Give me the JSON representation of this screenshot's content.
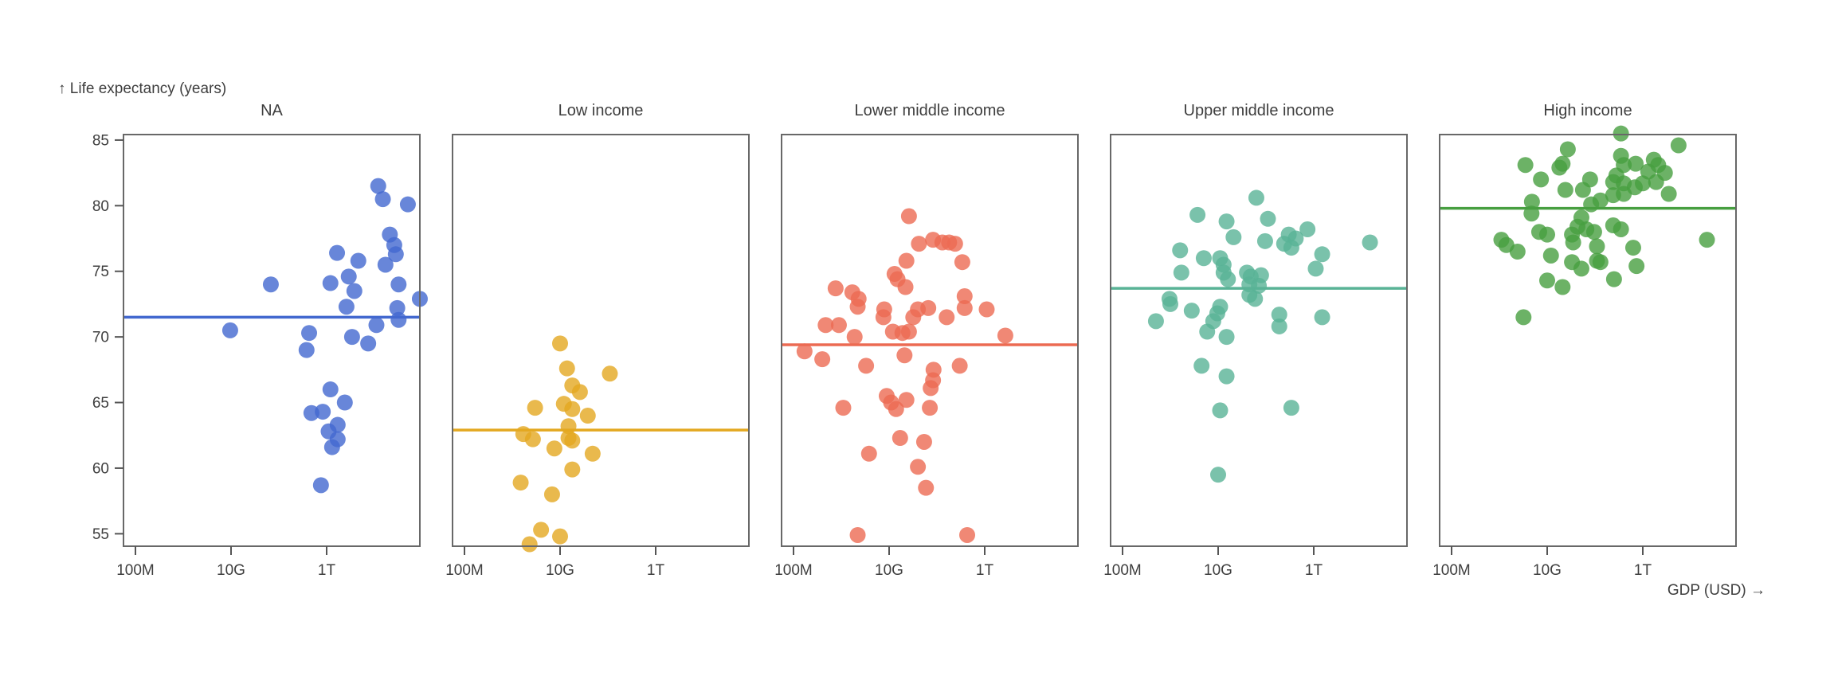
{
  "page": {
    "background": "#ffffff"
  },
  "style": {
    "frame_color": "#686868",
    "tick_color": "#555555",
    "text_color": "#3e3e3e",
    "dot_opacity": 0.8,
    "facet_colors": [
      "#4268cf",
      "#e3a820",
      "#ec6a52",
      "#59b396",
      "#479f40"
    ]
  },
  "chart_data": {
    "type": "scatter",
    "title": "",
    "ylabel_caption": "↑ Life expectancy (years)",
    "xlabel_caption": "GDP (USD) →",
    "xlabel": "GDP (USD)",
    "ylabel": "Life expectancy (years)",
    "x_scale": "log",
    "grid": false,
    "legend_position": "none",
    "y_ticks": [
      85,
      80,
      75,
      70,
      65,
      60,
      55
    ],
    "y_domain": [
      54.1,
      85.4
    ],
    "x_domain": [
      56000000.0,
      89000000000000.0
    ],
    "x_ticks": [
      {
        "value": 100000000.0,
        "label": "100M"
      },
      {
        "value": 10000000000.0,
        "label": "10G"
      },
      {
        "value": 1000000000000.0,
        "label": "1T"
      }
    ],
    "facets": [
      {
        "title": "NA",
        "color": "#4268cf",
        "mean": 71.5,
        "points": [
          [
            68000000000.0,
            74.0
          ],
          [
            1200000000000.0,
            74.1
          ],
          [
            1650000000000.0,
            76.4
          ],
          [
            4600000000000.0,
            75.8
          ],
          [
            2900000000000.0,
            74.6
          ],
          [
            3800000000000.0,
            73.5
          ],
          [
            2600000000000.0,
            72.3
          ],
          [
            12000000000000.0,
            81.5
          ],
          [
            15000000000000.0,
            80.5
          ],
          [
            50000000000000.0,
            80.1
          ],
          [
            21000000000000.0,
            77.8
          ],
          [
            26000000000000.0,
            77.0
          ],
          [
            28000000000000.0,
            76.3
          ],
          [
            17000000000000.0,
            75.5
          ],
          [
            32000000000000.0,
            74.0
          ],
          [
            89000000000000.0,
            72.9
          ],
          [
            30000000000000.0,
            72.2
          ],
          [
            32000000000000.0,
            71.3
          ],
          [
            11000000000000.0,
            70.9
          ],
          [
            9600000000.0,
            70.5
          ],
          [
            430000000000.0,
            70.3
          ],
          [
            3400000000000.0,
            70.0
          ],
          [
            7400000000000.0,
            69.5
          ],
          [
            380000000000.0,
            69.0
          ],
          [
            1200000000000.0,
            66.0
          ],
          [
            2400000000000.0,
            65.0
          ],
          [
            480000000000.0,
            64.2
          ],
          [
            830000000000.0,
            64.3
          ],
          [
            1700000000000.0,
            63.3
          ],
          [
            1100000000000.0,
            62.8
          ],
          [
            1700000000000.0,
            62.2
          ],
          [
            1300000000000.0,
            61.6
          ],
          [
            760000000000.0,
            58.7
          ]
        ]
      },
      {
        "title": "Low income",
        "color": "#e3a820",
        "mean": 62.9,
        "points": [
          [
            10000000000.0,
            69.5
          ],
          [
            14000000000.0,
            67.6
          ],
          [
            110000000000.0,
            67.2
          ],
          [
            18000000000.0,
            66.3
          ],
          [
            26000000000.0,
            65.8
          ],
          [
            3000000000.0,
            64.6
          ],
          [
            12000000000.0,
            64.9
          ],
          [
            18000000000.0,
            64.5
          ],
          [
            38000000000.0,
            64.0
          ],
          [
            15000000000.0,
            63.2
          ],
          [
            1700000000.0,
            62.6
          ],
          [
            2700000000.0,
            62.2
          ],
          [
            7600000000.0,
            61.5
          ],
          [
            15000000000.0,
            62.3
          ],
          [
            18000000000.0,
            62.1
          ],
          [
            48000000000.0,
            61.1
          ],
          [
            18000000000.0,
            59.9
          ],
          [
            1500000000.0,
            58.9
          ],
          [
            6800000000.0,
            58.0
          ],
          [
            4000000000.0,
            55.3
          ],
          [
            10000000000.0,
            54.8
          ],
          [
            2300000000.0,
            54.2
          ]
        ]
      },
      {
        "title": "Lower middle income",
        "color": "#ec6a52",
        "mean": 69.4,
        "points": [
          [
            26000000000.0,
            79.2
          ],
          [
            42000000000.0,
            77.1
          ],
          [
            83000000000.0,
            77.4
          ],
          [
            130000000000.0,
            77.2
          ],
          [
            180000000000.0,
            77.2
          ],
          [
            240000000000.0,
            77.1
          ],
          [
            340000000000.0,
            75.7
          ],
          [
            23000000000.0,
            75.8
          ],
          [
            13000000000.0,
            74.8
          ],
          [
            15000000000.0,
            74.4
          ],
          [
            22000000000.0,
            73.8
          ],
          [
            760000000.0,
            73.7
          ],
          [
            1700000000.0,
            73.4
          ],
          [
            2300000000.0,
            72.9
          ],
          [
            2200000000.0,
            72.3
          ],
          [
            7900000000.0,
            72.1
          ],
          [
            7600000000.0,
            71.5
          ],
          [
            40000000000.0,
            72.1
          ],
          [
            66000000000.0,
            72.2
          ],
          [
            32000000000.0,
            71.5
          ],
          [
            160000000000.0,
            71.5
          ],
          [
            380000000000.0,
            73.1
          ],
          [
            380000000000.0,
            72.2
          ],
          [
            1100000000000.0,
            72.1
          ],
          [
            470000000.0,
            70.9
          ],
          [
            890000000.0,
            70.9
          ],
          [
            12000000000.0,
            70.4
          ],
          [
            19000000000.0,
            70.3
          ],
          [
            26000000000.0,
            70.4
          ],
          [
            1900000000.0,
            70.0
          ],
          [
            2700000000000.0,
            70.1
          ],
          [
            170000000.0,
            68.9
          ],
          [
            400000000.0,
            68.3
          ],
          [
            21000000000.0,
            68.6
          ],
          [
            3300000000.0,
            67.8
          ],
          [
            85000000000.0,
            67.5
          ],
          [
            300000000000.0,
            67.8
          ],
          [
            83000000000.0,
            66.7
          ],
          [
            74000000000.0,
            66.1
          ],
          [
            8900000000.0,
            65.5
          ],
          [
            11000000000.0,
            65.0
          ],
          [
            14000000000.0,
            64.5
          ],
          [
            23000000000.0,
            65.2
          ],
          [
            71000000000.0,
            64.6
          ],
          [
            1100000000.0,
            64.6
          ],
          [
            17000000000.0,
            62.3
          ],
          [
            54000000000.0,
            62.0
          ],
          [
            3800000000.0,
            61.1
          ],
          [
            40000000000.0,
            60.1
          ],
          [
            59000000000.0,
            58.5
          ],
          [
            2200000000.0,
            54.9
          ],
          [
            430000000000.0,
            54.9
          ]
        ]
      },
      {
        "title": "Upper middle income",
        "color": "#59b396",
        "mean": 73.7,
        "points": [
          [
            63000000000.0,
            80.6
          ],
          [
            3700000000.0,
            79.3
          ],
          [
            15000000000.0,
            78.8
          ],
          [
            110000000000.0,
            79.0
          ],
          [
            21000000000.0,
            77.6
          ],
          [
            740000000000.0,
            78.2
          ],
          [
            300000000000.0,
            77.8
          ],
          [
            420000000000.0,
            77.5
          ],
          [
            96000000000.0,
            77.3
          ],
          [
            240000000000.0,
            77.1
          ],
          [
            340000000000.0,
            76.8
          ],
          [
            15000000000000.0,
            77.2
          ],
          [
            1600000000.0,
            76.6
          ],
          [
            5000000000.0,
            76.0
          ],
          [
            1500000000000.0,
            76.3
          ],
          [
            1100000000000.0,
            75.2
          ],
          [
            11000000000.0,
            76.0
          ],
          [
            13000000000.0,
            75.5
          ],
          [
            13000000000.0,
            74.9
          ],
          [
            1700000000.0,
            74.9
          ],
          [
            16000000000.0,
            74.4
          ],
          [
            40000000000.0,
            74.9
          ],
          [
            48000000000.0,
            74.6
          ],
          [
            79000000000.0,
            74.7
          ],
          [
            45000000000.0,
            74.0
          ],
          [
            71000000000.0,
            73.9
          ],
          [
            45000000000.0,
            73.2
          ],
          [
            59000000000.0,
            72.9
          ],
          [
            960000000.0,
            72.9
          ],
          [
            1000000000.0,
            72.5
          ],
          [
            2800000000.0,
            72.0
          ],
          [
            500000000.0,
            71.2
          ],
          [
            11000000000.0,
            72.3
          ],
          [
            9600000000.0,
            71.8
          ],
          [
            7900000000.0,
            71.2
          ],
          [
            190000000000.0,
            71.7
          ],
          [
            190000000000.0,
            70.8
          ],
          [
            1500000000000.0,
            71.5
          ],
          [
            5900000000.0,
            70.4
          ],
          [
            15000000000.0,
            70.0
          ],
          [
            4500000000.0,
            67.8
          ],
          [
            15000000000.0,
            67.0
          ],
          [
            11000000000.0,
            64.4
          ],
          [
            340000000000.0,
            64.6
          ],
          [
            10000000000.0,
            59.5
          ]
        ]
      },
      {
        "title": "High income",
        "color": "#479f40",
        "mean": 79.8,
        "points": [
          [
            350000000000.0,
            85.5
          ],
          [
            5600000000000.0,
            84.6
          ],
          [
            27000000000.0,
            84.3
          ],
          [
            3500000000.0,
            83.1
          ],
          [
            18000000000.0,
            82.9
          ],
          [
            21000000000.0,
            83.2
          ],
          [
            7400000000.0,
            82.0
          ],
          [
            350000000000.0,
            83.8
          ],
          [
            400000000000.0,
            83.1
          ],
          [
            280000000000.0,
            82.3
          ],
          [
            240000000000.0,
            81.8
          ],
          [
            400000000000.0,
            81.7
          ],
          [
            710000000000.0,
            83.2
          ],
          [
            1700000000000.0,
            83.5
          ],
          [
            1300000000000.0,
            82.6
          ],
          [
            2100000000000.0,
            83.1
          ],
          [
            2900000000000.0,
            82.5
          ],
          [
            1900000000000.0,
            81.8
          ],
          [
            1000000000000.0,
            81.7
          ],
          [
            680000000000.0,
            81.4
          ],
          [
            400000000000.0,
            80.9
          ],
          [
            240000000000.0,
            80.8
          ],
          [
            79000000000.0,
            82.0
          ],
          [
            56000000000.0,
            81.2
          ],
          [
            24000000000.0,
            81.2
          ],
          [
            130000000000.0,
            80.4
          ],
          [
            83000000000.0,
            80.1
          ],
          [
            3500000000000.0,
            80.9
          ],
          [
            4800000000.0,
            80.3
          ],
          [
            4700000000.0,
            79.4
          ],
          [
            52000000000.0,
            79.1
          ],
          [
            43000000000.0,
            78.4
          ],
          [
            66000000000.0,
            78.2
          ],
          [
            33000000000.0,
            77.8
          ],
          [
            35000000000.0,
            77.2
          ],
          [
            96000000000.0,
            78.0
          ],
          [
            240000000000.0,
            78.5
          ],
          [
            350000000000.0,
            78.2
          ],
          [
            6800000000.0,
            78.0
          ],
          [
            10000000000.0,
            77.8
          ],
          [
            1100000000.0,
            77.4
          ],
          [
            1400000000.0,
            77.0
          ],
          [
            2400000000.0,
            76.5
          ],
          [
            22000000000000.0,
            77.4
          ],
          [
            110000000000.0,
            76.9
          ],
          [
            630000000000.0,
            76.8
          ],
          [
            12000000000.0,
            76.2
          ],
          [
            33000000000.0,
            75.7
          ],
          [
            52000000000.0,
            75.2
          ],
          [
            110000000000.0,
            75.8
          ],
          [
            130000000000.0,
            75.7
          ],
          [
            740000000000.0,
            75.4
          ],
          [
            250000000000.0,
            74.4
          ],
          [
            10000000000.0,
            74.3
          ],
          [
            21000000000.0,
            73.8
          ],
          [
            3200000000.0,
            71.5
          ]
        ]
      }
    ]
  }
}
